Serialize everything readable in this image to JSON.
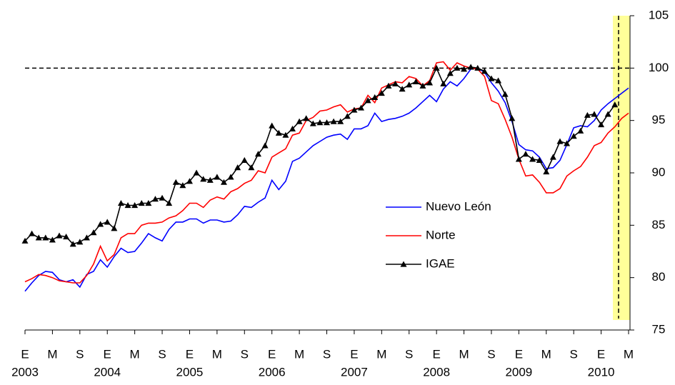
{
  "chart_data": {
    "type": "line",
    "categories": [
      "E",
      null,
      null,
      null,
      "M",
      null,
      null,
      null,
      "S",
      null,
      null,
      null,
      "E",
      null,
      null,
      null,
      "M",
      null,
      null,
      null,
      "S",
      null,
      null,
      null,
      "E",
      null,
      null,
      null,
      "M",
      null,
      null,
      null,
      "S",
      null,
      null,
      null,
      "E",
      null,
      null,
      null,
      "M",
      null,
      null,
      null,
      "S",
      null,
      null,
      null,
      "E",
      null,
      null,
      null,
      "M",
      null,
      null,
      null,
      "S",
      null,
      null,
      null,
      "E",
      null,
      null,
      null,
      "M",
      null,
      null,
      null,
      "S",
      null,
      null,
      null,
      "E",
      null,
      null,
      null,
      "M",
      null,
      null,
      null,
      "S",
      null,
      null,
      null,
      "E",
      null,
      null,
      null,
      "M"
    ],
    "category_years": [
      "2003",
      null,
      null,
      null,
      null,
      null,
      null,
      null,
      null,
      null,
      null,
      null,
      "2004",
      null,
      null,
      null,
      null,
      null,
      null,
      null,
      null,
      null,
      null,
      null,
      "2005",
      null,
      null,
      null,
      null,
      null,
      null,
      null,
      null,
      null,
      null,
      null,
      "2006",
      null,
      null,
      null,
      null,
      null,
      null,
      null,
      null,
      null,
      null,
      null,
      "2007",
      null,
      null,
      null,
      null,
      null,
      null,
      null,
      null,
      null,
      null,
      null,
      "2008",
      null,
      null,
      null,
      null,
      null,
      null,
      null,
      null,
      null,
      null,
      null,
      "2009",
      null,
      null,
      null,
      null,
      null,
      null,
      null,
      null,
      null,
      null,
      null,
      "2010",
      null,
      null,
      null,
      null
    ],
    "series": [
      {
        "name": "Nuevo León",
        "color": "#0000ff",
        "marker": "none",
        "values": [
          78.7,
          79.5,
          80.2,
          80.6,
          80.5,
          79.8,
          79.6,
          79.8,
          79.1,
          80.3,
          80.6,
          81.7,
          81.0,
          82.0,
          82.8,
          82.4,
          82.5,
          83.3,
          84.2,
          83.8,
          83.5,
          84.6,
          85.3,
          85.3,
          85.6,
          85.6,
          85.2,
          85.5,
          85.5,
          85.3,
          85.4,
          86.0,
          86.8,
          86.7,
          87.2,
          87.6,
          89.3,
          88.4,
          89.2,
          91.1,
          91.4,
          92.0,
          92.6,
          93.0,
          93.4,
          93.6,
          93.7,
          93.2,
          94.2,
          94.2,
          94.5,
          95.7,
          94.9,
          95.1,
          95.2,
          95.4,
          95.7,
          96.2,
          96.8,
          97.4,
          96.8,
          98.0,
          98.7,
          98.3,
          99.0,
          99.9,
          100.0,
          99.6,
          98.6,
          97.8,
          96.7,
          94.9,
          92.7,
          92.2,
          92.1,
          91.5,
          90.4,
          90.5,
          91.2,
          92.7,
          94.3,
          94.5,
          94.4,
          95.0,
          96.0,
          96.6,
          97.1,
          97.6,
          98.1
        ]
      },
      {
        "name": "Norte",
        "color": "#ff0000",
        "marker": "none",
        "values": [
          79.6,
          79.9,
          80.3,
          80.2,
          80.0,
          79.7,
          79.6,
          79.5,
          79.5,
          80.2,
          81.3,
          83.0,
          81.6,
          82.2,
          83.8,
          84.2,
          84.2,
          85.0,
          85.2,
          85.2,
          85.3,
          85.7,
          85.9,
          86.4,
          87.1,
          87.1,
          86.7,
          87.4,
          87.7,
          87.5,
          88.2,
          88.5,
          89.0,
          89.3,
          90.2,
          90.0,
          91.5,
          91.9,
          92.3,
          93.6,
          93.8,
          95.0,
          95.3,
          95.9,
          96.0,
          96.3,
          96.5,
          95.8,
          96.1,
          96.2,
          97.4,
          96.7,
          98.1,
          98.4,
          98.7,
          98.6,
          99.2,
          99.0,
          98.3,
          98.8,
          100.5,
          100.6,
          99.8,
          100.5,
          100.2,
          100.0,
          99.9,
          99.2,
          96.9,
          96.6,
          95.1,
          93.4,
          91.3,
          89.7,
          89.8,
          89.1,
          88.1,
          88.1,
          88.5,
          89.7,
          90.2,
          90.6,
          91.5,
          92.6,
          92.9,
          93.8,
          94.4,
          95.2,
          95.7
        ]
      },
      {
        "name": "IGAE",
        "color": "#000000",
        "marker": "triangle",
        "values": [
          83.5,
          84.2,
          83.8,
          83.8,
          83.6,
          84.0,
          83.9,
          83.2,
          83.4,
          83.8,
          84.3,
          85.1,
          85.3,
          84.7,
          87.1,
          86.9,
          86.9,
          87.1,
          87.1,
          87.5,
          87.6,
          87.1,
          89.1,
          88.8,
          89.2,
          90.0,
          89.4,
          89.3,
          89.6,
          89.1,
          89.6,
          90.5,
          91.2,
          90.5,
          91.8,
          92.6,
          94.5,
          93.8,
          93.6,
          94.2,
          94.9,
          95.2,
          94.7,
          94.8,
          94.8,
          94.9,
          94.9,
          95.4,
          96.0,
          96.2,
          96.9,
          97.2,
          97.6,
          98.3,
          98.5,
          98.0,
          98.4,
          98.7,
          98.3,
          98.6,
          100.0,
          98.5,
          99.5,
          100.0,
          99.9,
          100.1,
          100.0,
          99.7,
          99.0,
          98.8,
          97.5,
          95.2,
          91.3,
          91.8,
          91.3,
          91.2,
          90.1,
          91.5,
          93.0,
          92.8,
          93.5,
          94.0,
          95.5,
          95.6,
          94.6,
          95.6,
          96.5,
          null,
          null
        ]
      }
    ],
    "ylim": [
      75,
      105
    ],
    "yticks": [
      75,
      80,
      85,
      90,
      95,
      100,
      105
    ],
    "y_axis_side": "right",
    "reference_line": 100,
    "legend": "center",
    "grid": false
  }
}
